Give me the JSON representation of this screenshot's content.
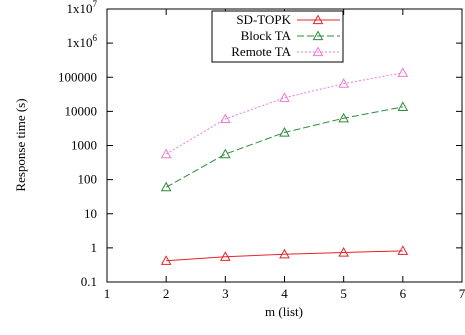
{
  "chart_data": {
    "type": "line",
    "xlabel": "m (list)",
    "ylabel": "Response time (s)",
    "xlim": [
      1,
      7
    ],
    "ylim": [
      0.1,
      10000000
    ],
    "yscale": "log",
    "grid": false,
    "legend_position": "top-center",
    "x_ticks": [
      "1",
      "2",
      "3",
      "4",
      "5",
      "6",
      "7"
    ],
    "y_ticks": [
      {
        "base": "0.1",
        "exp": ""
      },
      {
        "base": "1",
        "exp": ""
      },
      {
        "base": "10",
        "exp": ""
      },
      {
        "base": "100",
        "exp": ""
      },
      {
        "base": "1000",
        "exp": ""
      },
      {
        "base": "10000",
        "exp": ""
      },
      {
        "base": "100000",
        "exp": ""
      },
      {
        "base": "1x10",
        "exp": "6"
      },
      {
        "base": "1x10",
        "exp": "7"
      }
    ],
    "x": [
      2,
      3,
      4,
      5,
      6
    ],
    "series": [
      {
        "name": "SD-TOPK",
        "values": [
          0.42,
          0.55,
          0.65,
          0.73,
          0.82
        ],
        "color": "#e3242b",
        "dash": "solid"
      },
      {
        "name": "Block TA",
        "values": [
          60,
          560,
          2400,
          6300,
          13500
        ],
        "color": "#2e8b3a",
        "dash": "long-dash"
      },
      {
        "name": "Remote TA",
        "values": [
          560,
          6000,
          25000,
          65000,
          135000
        ],
        "color": "#ee7ad4",
        "dash": "dotted"
      }
    ]
  }
}
